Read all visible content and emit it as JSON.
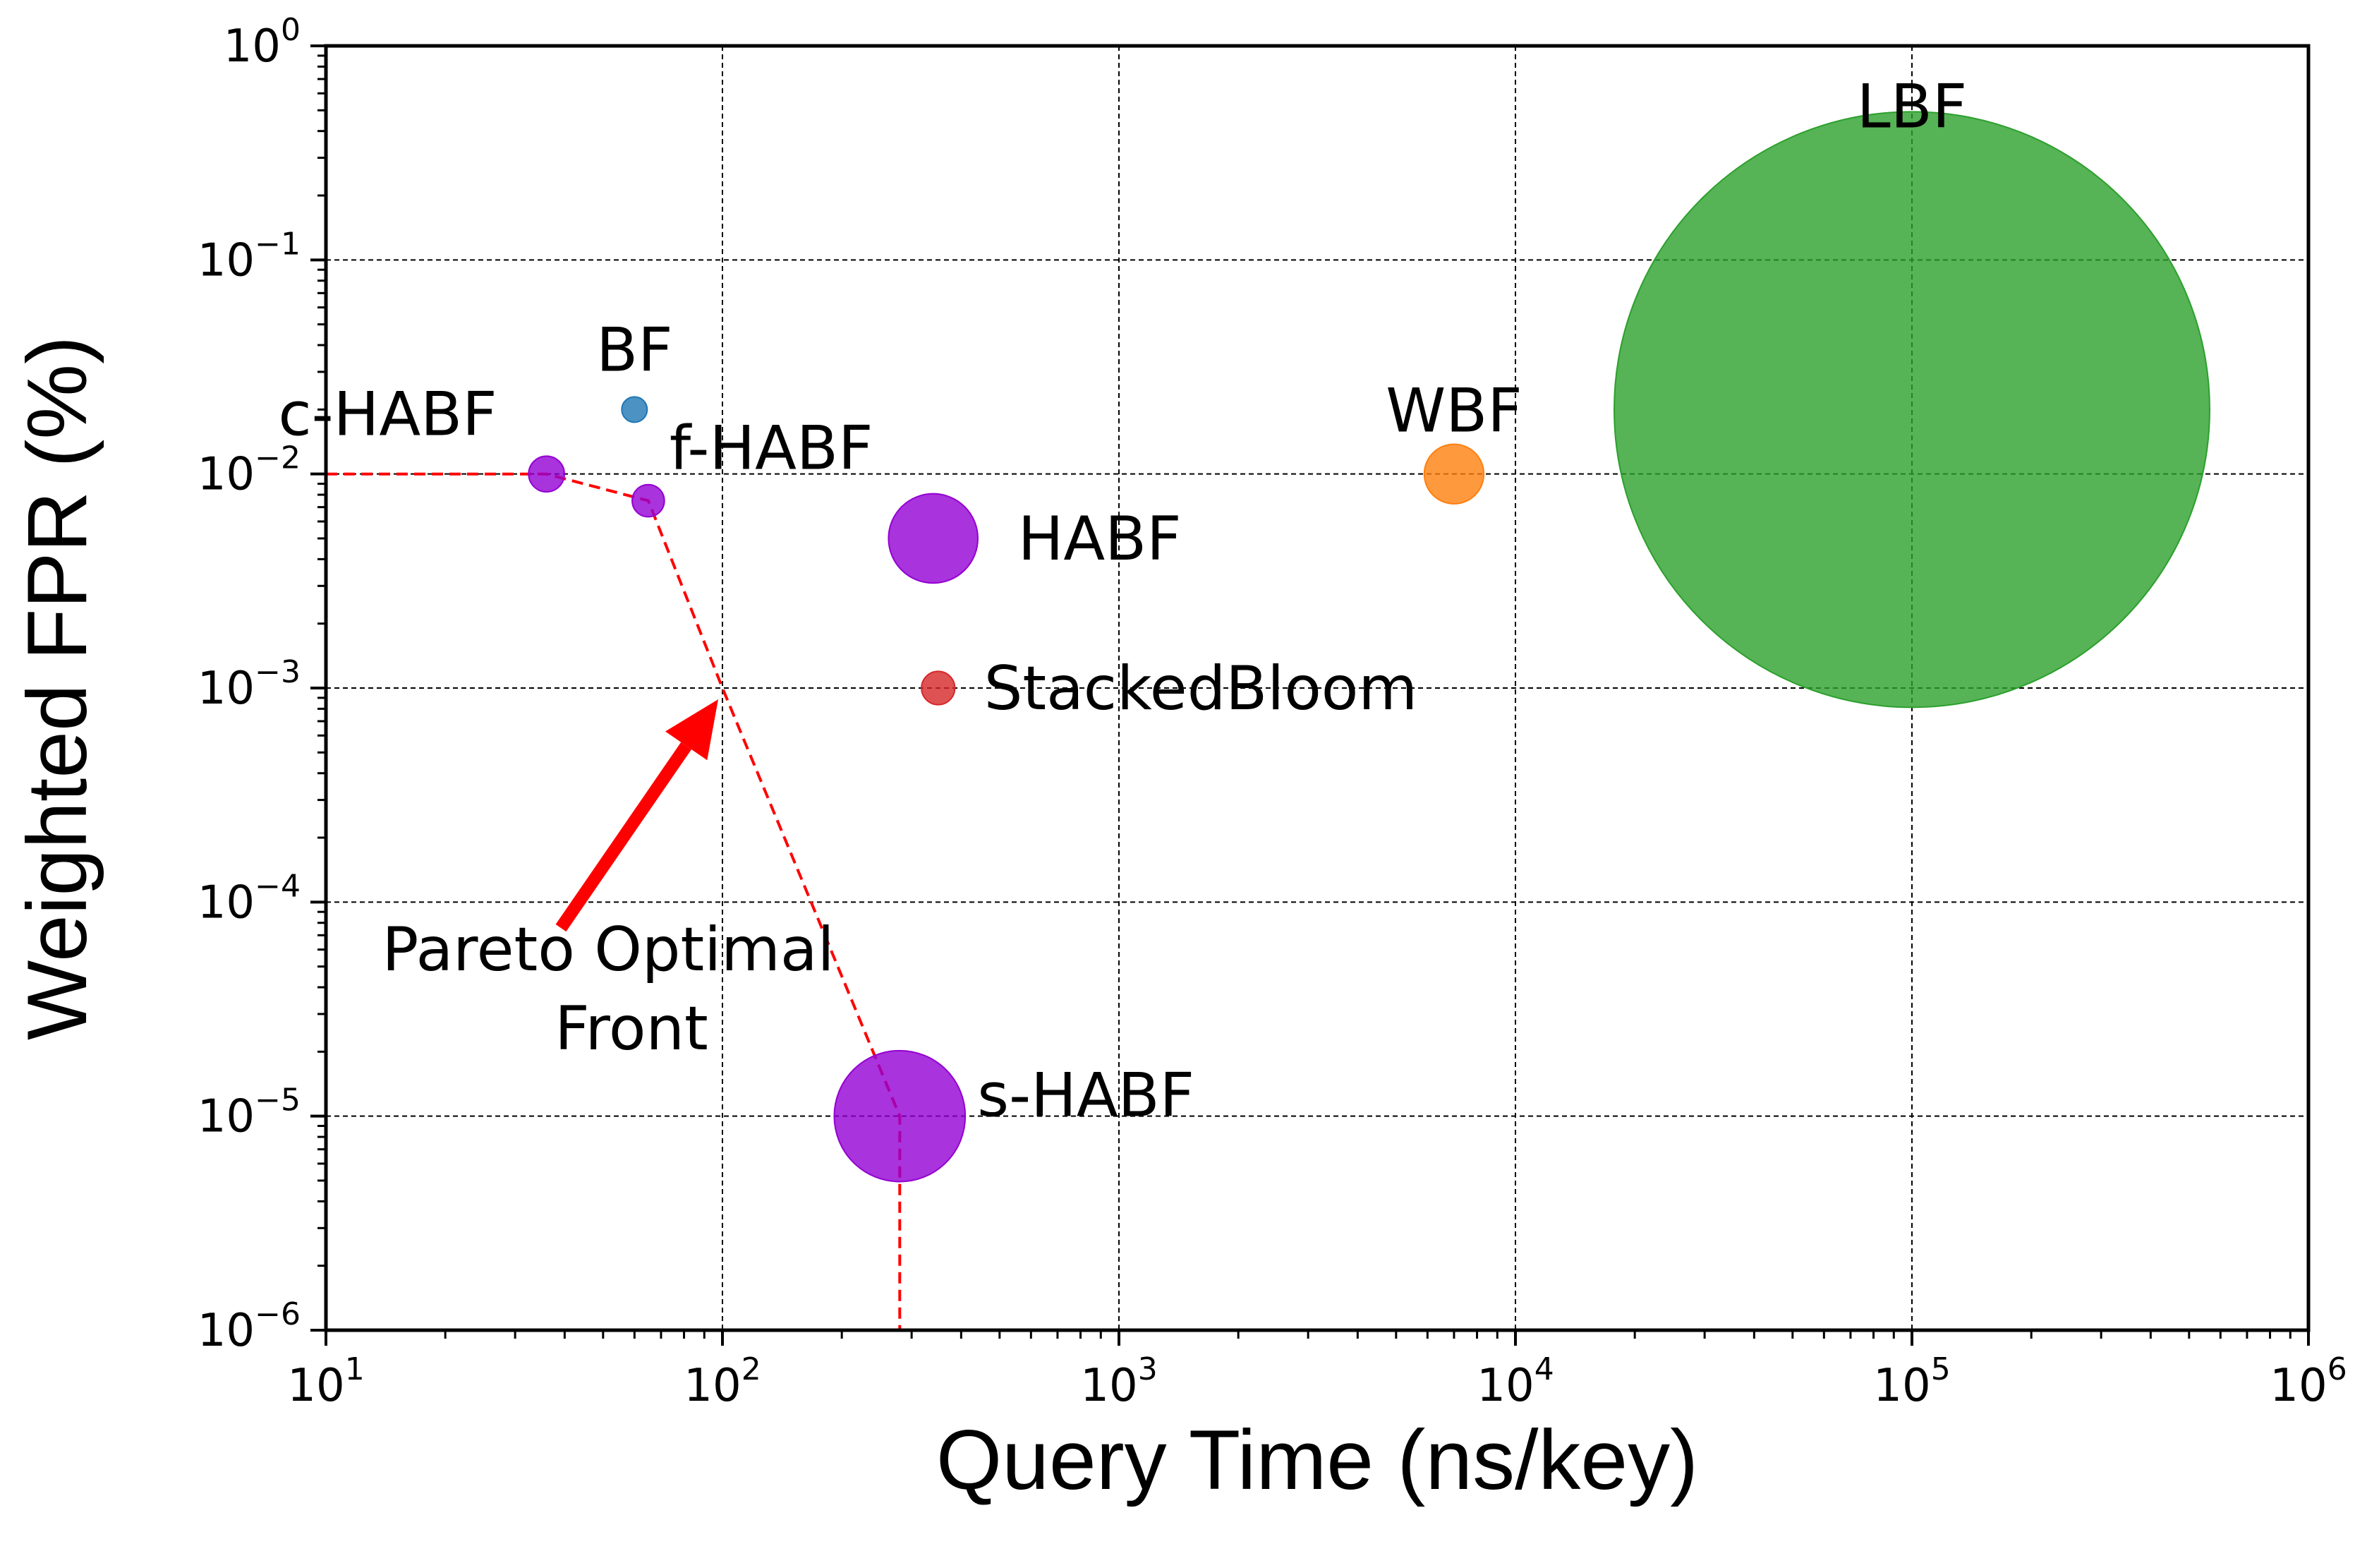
{
  "chart_data": {
    "type": "scatter",
    "xlabel": "Query Time (ns/key)",
    "ylabel": "Weighted FPR (%)",
    "xscale": "log",
    "yscale": "log",
    "xlim": [
      10,
      1000000
    ],
    "ylim": [
      1e-06,
      1
    ],
    "grid": true,
    "x_ticks": [
      {
        "base": "10",
        "exp": "1"
      },
      {
        "base": "10",
        "exp": "2"
      },
      {
        "base": "10",
        "exp": "3"
      },
      {
        "base": "10",
        "exp": "4"
      },
      {
        "base": "10",
        "exp": "5"
      },
      {
        "base": "10",
        "exp": "6"
      }
    ],
    "y_ticks": [
      {
        "base": "10",
        "exp": "0"
      },
      {
        "base": "10",
        "exp": "−1"
      },
      {
        "base": "10",
        "exp": "−2"
      },
      {
        "base": "10",
        "exp": "−3"
      },
      {
        "base": "10",
        "exp": "−4"
      },
      {
        "base": "10",
        "exp": "−5"
      },
      {
        "base": "10",
        "exp": "−6"
      }
    ],
    "points": [
      {
        "label": "BF",
        "x": 60,
        "y": 0.02,
        "size": 0.01,
        "color": "#1f77b4"
      },
      {
        "label": "c-HABF",
        "x": 36,
        "y": 0.01,
        "size": 0.03,
        "color": "#9400D3"
      },
      {
        "label": "f-HABF",
        "x": 65,
        "y": 0.0075,
        "size": 0.027,
        "color": "#9400D3"
      },
      {
        "label": "HABF",
        "x": 340,
        "y": 0.005,
        "size": 0.075,
        "color": "#9400D3"
      },
      {
        "label": "StackedBloom",
        "x": 350,
        "y": 0.001,
        "size": 0.028,
        "color": "#d62728"
      },
      {
        "label": "s-HABF",
        "x": 280,
        "y": 1e-05,
        "size": 0.11,
        "color": "#9400D3"
      },
      {
        "label": "WBF",
        "x": 7000,
        "y": 0.01,
        "size": 0.05,
        "color": "#ff7f0e"
      },
      {
        "label": "LBF",
        "x": 100000,
        "y": 0.02,
        "size": 0.5,
        "color": "#2ca02c"
      }
    ],
    "pareto_front": {
      "color": "#ff0000",
      "points": [
        {
          "x": 10,
          "y": 0.01
        },
        {
          "x": 36,
          "y": 0.01
        },
        {
          "x": 65,
          "y": 0.0075
        },
        {
          "x": 100,
          "y": 0.001
        },
        {
          "x": 280,
          "y": 1e-05
        },
        {
          "x": 280,
          "y": 1e-06
        }
      ]
    },
    "annotation": {
      "lines": [
        "Pareto Optimal",
        "Front"
      ],
      "arrow_color": "#ff0000"
    }
  }
}
